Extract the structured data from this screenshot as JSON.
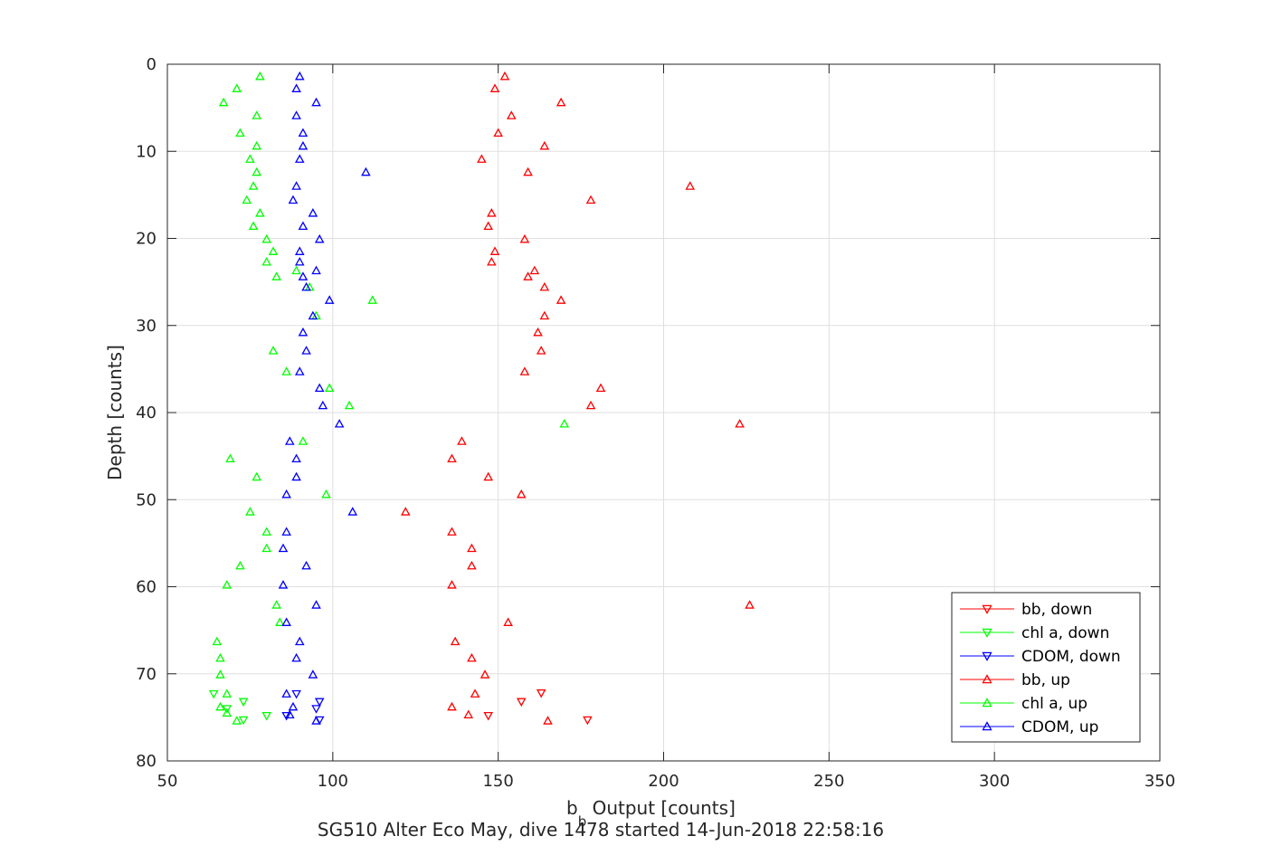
{
  "chart_data": {
    "type": "scatter",
    "xlabel_main": "b",
    "xlabel_sub": "b",
    "xlabel_rest": " Output [counts]",
    "ylabel": "Depth [counts]",
    "caption": "SG510 Alter Eco May, dive 1478 started 14-Jun-2018 22:58:16",
    "xlim": [
      50,
      350
    ],
    "ylim": [
      0,
      80
    ],
    "y_reversed": true,
    "xticks": [
      50,
      100,
      150,
      200,
      250,
      300,
      350
    ],
    "yticks": [
      0,
      10,
      20,
      30,
      40,
      50,
      60,
      70,
      80
    ],
    "grid": true,
    "legend_position": "bottom-right",
    "series": [
      {
        "name": "bb, down",
        "color": "#ff0000",
        "marker": "triangle-down",
        "points": [
          [
            163,
            72.2
          ],
          [
            157,
            73.2
          ],
          [
            147,
            74.8
          ],
          [
            177,
            75.3
          ]
        ]
      },
      {
        "name": "chl a, down",
        "color": "#00ff00",
        "marker": "triangle-down",
        "points": [
          [
            64,
            72.3
          ],
          [
            73,
            73.2
          ],
          [
            68,
            74.0
          ],
          [
            80,
            74.8
          ],
          [
            73,
            75.3
          ]
        ]
      },
      {
        "name": "CDOM, down",
        "color": "#0000ff",
        "marker": "triangle-down",
        "points": [
          [
            89,
            72.3
          ],
          [
            96,
            73.2
          ],
          [
            95,
            74.0
          ],
          [
            86,
            74.8
          ],
          [
            96,
            75.3
          ]
        ]
      },
      {
        "name": "bb, up",
        "color": "#ff0000",
        "marker": "triangle-up",
        "points": [
          [
            152,
            1.4
          ],
          [
            149,
            2.8
          ],
          [
            169,
            4.4
          ],
          [
            154,
            5.9
          ],
          [
            150,
            7.9
          ],
          [
            164,
            9.4
          ],
          [
            145,
            10.9
          ],
          [
            159,
            12.4
          ],
          [
            208,
            14.0
          ],
          [
            178,
            15.6
          ],
          [
            148,
            17.1
          ],
          [
            147,
            18.6
          ],
          [
            158,
            20.1
          ],
          [
            149,
            21.5
          ],
          [
            148,
            22.7
          ],
          [
            161,
            23.7
          ],
          [
            159,
            24.4
          ],
          [
            164,
            25.6
          ],
          [
            169,
            27.1
          ],
          [
            164,
            28.9
          ],
          [
            162,
            30.8
          ],
          [
            163,
            32.9
          ],
          [
            158,
            35.3
          ],
          [
            181,
            37.2
          ],
          [
            178,
            39.2
          ],
          [
            223,
            41.3
          ],
          [
            139,
            43.3
          ],
          [
            136,
            45.3
          ],
          [
            147,
            47.4
          ],
          [
            157,
            49.4
          ],
          [
            122,
            51.4
          ],
          [
            136,
            53.7
          ],
          [
            142,
            55.6
          ],
          [
            142,
            57.6
          ],
          [
            136,
            59.8
          ],
          [
            226,
            62.1
          ],
          [
            153,
            64.1
          ],
          [
            137,
            66.3
          ],
          [
            142,
            68.2
          ],
          [
            146,
            70.1
          ],
          [
            143,
            72.3
          ],
          [
            136,
            73.8
          ],
          [
            141,
            74.7
          ],
          [
            165,
            75.4
          ]
        ]
      },
      {
        "name": "chl a, up",
        "color": "#00ff00",
        "marker": "triangle-up",
        "points": [
          [
            78,
            1.4
          ],
          [
            71,
            2.8
          ],
          [
            67,
            4.4
          ],
          [
            77,
            5.9
          ],
          [
            72,
            7.9
          ],
          [
            77,
            9.4
          ],
          [
            75,
            10.9
          ],
          [
            77,
            12.4
          ],
          [
            76,
            14.0
          ],
          [
            74,
            15.6
          ],
          [
            78,
            17.1
          ],
          [
            76,
            18.6
          ],
          [
            80,
            20.1
          ],
          [
            82,
            21.5
          ],
          [
            80,
            22.7
          ],
          [
            89,
            23.7
          ],
          [
            83,
            24.4
          ],
          [
            93,
            25.6
          ],
          [
            112,
            27.1
          ],
          [
            95,
            28.9
          ],
          [
            82,
            32.9
          ],
          [
            86,
            35.3
          ],
          [
            99,
            37.2
          ],
          [
            105,
            39.2
          ],
          [
            170,
            41.3
          ],
          [
            91,
            43.3
          ],
          [
            69,
            45.3
          ],
          [
            77,
            47.4
          ],
          [
            98,
            49.4
          ],
          [
            75,
            51.4
          ],
          [
            80,
            53.7
          ],
          [
            80,
            55.6
          ],
          [
            72,
            57.6
          ],
          [
            68,
            59.8
          ],
          [
            83,
            62.1
          ],
          [
            84,
            64.1
          ],
          [
            65,
            66.3
          ],
          [
            66,
            68.2
          ],
          [
            66,
            70.1
          ],
          [
            68,
            72.3
          ],
          [
            66,
            73.8
          ],
          [
            68,
            74.5
          ],
          [
            71,
            75.4
          ]
        ]
      },
      {
        "name": "CDOM, up",
        "color": "#0000ff",
        "marker": "triangle-up",
        "points": [
          [
            90,
            1.4
          ],
          [
            89,
            2.8
          ],
          [
            95,
            4.4
          ],
          [
            89,
            5.9
          ],
          [
            91,
            7.9
          ],
          [
            91,
            9.4
          ],
          [
            90,
            10.9
          ],
          [
            110,
            12.4
          ],
          [
            89,
            14.0
          ],
          [
            88,
            15.6
          ],
          [
            94,
            17.1
          ],
          [
            91,
            18.6
          ],
          [
            96,
            20.1
          ],
          [
            90,
            21.5
          ],
          [
            90,
            22.7
          ],
          [
            95,
            23.7
          ],
          [
            91,
            24.4
          ],
          [
            92,
            25.6
          ],
          [
            99,
            27.1
          ],
          [
            94,
            28.9
          ],
          [
            91,
            30.8
          ],
          [
            92,
            32.9
          ],
          [
            90,
            35.3
          ],
          [
            96,
            37.2
          ],
          [
            97,
            39.2
          ],
          [
            102,
            41.3
          ],
          [
            87,
            43.3
          ],
          [
            89,
            45.3
          ],
          [
            89,
            47.4
          ],
          [
            86,
            49.4
          ],
          [
            106,
            51.4
          ],
          [
            86,
            53.7
          ],
          [
            85,
            55.6
          ],
          [
            92,
            57.6
          ],
          [
            85,
            59.8
          ],
          [
            95,
            62.1
          ],
          [
            86,
            64.1
          ],
          [
            90,
            66.3
          ],
          [
            89,
            68.2
          ],
          [
            94,
            70.1
          ],
          [
            86,
            72.3
          ],
          [
            88,
            73.8
          ],
          [
            87,
            74.7
          ],
          [
            95,
            75.4
          ]
        ]
      }
    ]
  }
}
